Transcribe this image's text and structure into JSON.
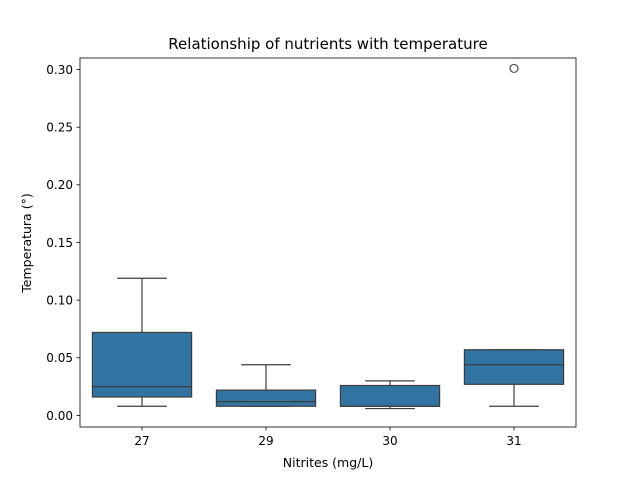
{
  "chart_data": {
    "type": "box",
    "title": "Relationship of nutrients with temperature",
    "xlabel": "Nitrites (mg/L)",
    "ylabel": "Temperatura (°)",
    "categories": [
      "27",
      "29",
      "30",
      "31"
    ],
    "ylim": [
      -0.01,
      0.31
    ],
    "yticks": [
      0.0,
      0.05,
      0.1,
      0.15,
      0.2,
      0.25,
      0.3
    ],
    "ytick_labels": [
      "0.00",
      "0.05",
      "0.10",
      "0.15",
      "0.20",
      "0.25",
      "0.30"
    ],
    "grid": false,
    "box_color": "#3274a1",
    "line_color": "#3d3d3d",
    "boxes": [
      {
        "category": "27",
        "whisker_low": 0.008,
        "q1": 0.016,
        "median": 0.025,
        "q3": 0.072,
        "whisker_high": 0.119,
        "outliers": []
      },
      {
        "category": "29",
        "whisker_low": 0.008,
        "q1": 0.008,
        "median": 0.012,
        "q3": 0.022,
        "whisker_high": 0.044,
        "outliers": []
      },
      {
        "category": "30",
        "whisker_low": 0.006,
        "q1": 0.008,
        "median": 0.008,
        "q3": 0.026,
        "whisker_high": 0.03,
        "outliers": []
      },
      {
        "category": "31",
        "whisker_low": 0.008,
        "q1": 0.027,
        "median": 0.044,
        "q3": 0.057,
        "whisker_high": 0.057,
        "outliers": [
          0.301
        ]
      }
    ]
  }
}
